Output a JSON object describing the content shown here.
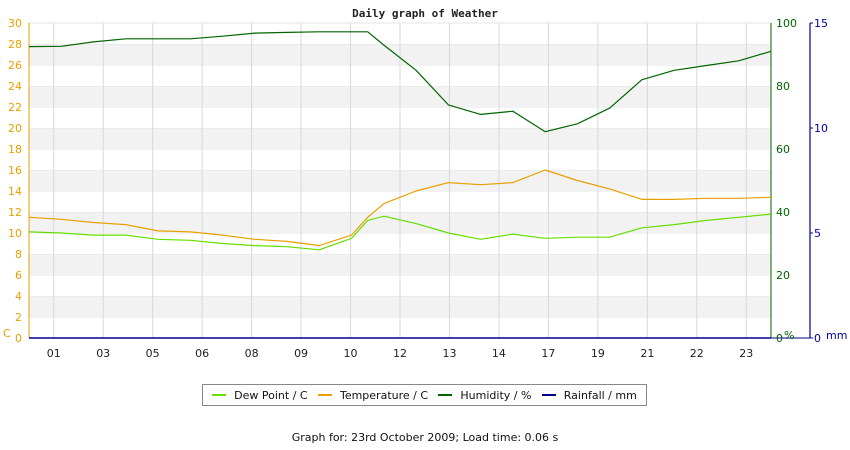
{
  "chart_data": {
    "type": "line",
    "title": "Daily graph of Weather",
    "x_ticks": [
      "01",
      "03",
      "05",
      "06",
      "08",
      "09",
      "10",
      "12",
      "13",
      "14",
      "17",
      "19",
      "21",
      "22",
      "23"
    ],
    "left_axis": {
      "unit": "C",
      "min": 0,
      "max": 30,
      "ticks": [
        0,
        2,
        4,
        6,
        8,
        10,
        12,
        14,
        16,
        18,
        20,
        22,
        24,
        26,
        28,
        30
      ]
    },
    "right_axis_1": {
      "unit": "%",
      "min": 0,
      "max": 100,
      "ticks": [
        0,
        20,
        40,
        60,
        80,
        100
      ]
    },
    "right_axis_2": {
      "unit": "mm",
      "min": 0,
      "max": 15,
      "ticks": [
        0,
        5,
        10,
        15
      ]
    },
    "grid": true,
    "legend_placement": "bottom",
    "x": [
      0,
      1,
      2,
      3,
      4,
      5,
      6,
      7,
      8,
      9,
      10,
      10.5,
      11,
      12,
      13,
      14,
      15,
      16,
      17,
      18,
      19,
      20,
      21,
      22,
      23
    ],
    "series": [
      {
        "name": "Dew Point / C",
        "axis": "left",
        "color": "#66dd00",
        "values": [
          10.1,
          10.0,
          9.8,
          9.8,
          9.4,
          9.3,
          9.0,
          8.8,
          8.7,
          8.4,
          9.5,
          11.2,
          11.6,
          10.9,
          10.0,
          9.4,
          9.9,
          9.5,
          9.6,
          9.6,
          10.5,
          10.8,
          11.2,
          11.5,
          11.8
        ]
      },
      {
        "name": "Temperature / C",
        "axis": "left",
        "color": "#e8a000",
        "values": [
          11.5,
          11.3,
          11.0,
          10.8,
          10.2,
          10.1,
          9.8,
          9.4,
          9.2,
          8.8,
          9.8,
          11.5,
          12.8,
          14.0,
          14.8,
          14.6,
          14.8,
          16.0,
          15.0,
          14.2,
          13.2,
          13.2,
          13.3,
          13.3,
          13.4
        ]
      },
      {
        "name": "Humidity / %",
        "axis": "right1",
        "color": "#006400",
        "values": [
          92.5,
          92.6,
          94.0,
          95.0,
          95.0,
          95.0,
          95.8,
          96.8,
          97.0,
          97.2,
          97.2,
          97.2,
          93.0,
          85.0,
          74.0,
          71.0,
          72.0,
          65.5,
          68.0,
          73.0,
          82.0,
          85.0,
          86.5,
          88.0,
          91.0
        ]
      },
      {
        "name": "Rainfall / mm",
        "axis": "right2",
        "color": "#00008b",
        "values": [
          0,
          0,
          0,
          0,
          0,
          0,
          0,
          0,
          0,
          0,
          0,
          0,
          0,
          0,
          0,
          0,
          0,
          0,
          0,
          0,
          0,
          0,
          0,
          0,
          0
        ]
      }
    ]
  },
  "footer": {
    "label": "Graph for: 23rd October 2009; Load time: 0.06 s"
  }
}
